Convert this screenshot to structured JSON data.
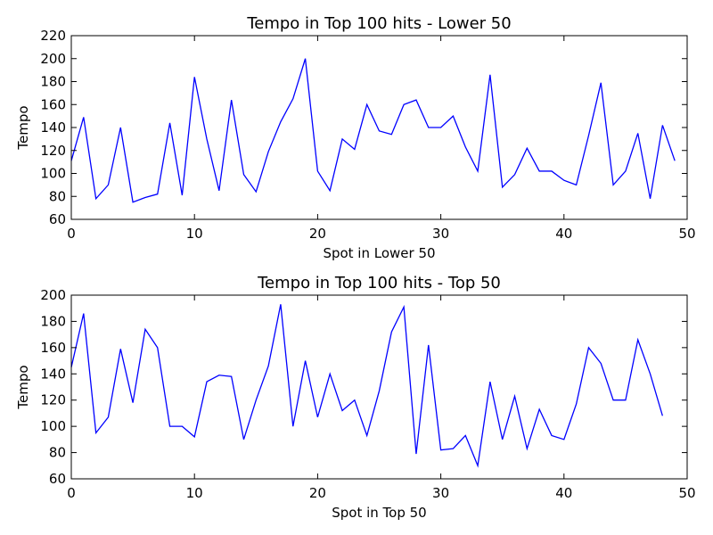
{
  "chart_data": [
    {
      "type": "line",
      "title": "Tempo in Top 100 hits - Lower 50",
      "xlabel": "Spot in Lower 50",
      "ylabel": "Tempo",
      "xlim": [
        0,
        50
      ],
      "ylim": [
        60,
        220
      ],
      "xticks": [
        0,
        10,
        20,
        30,
        40,
        50
      ],
      "yticks": [
        60,
        80,
        100,
        120,
        140,
        160,
        180,
        200,
        220
      ],
      "grid": false,
      "series": [
        {
          "color": "#0000ff",
          "x": [
            0,
            1,
            2,
            3,
            4,
            5,
            6,
            7,
            8,
            9,
            10,
            11,
            12,
            13,
            14,
            15,
            16,
            17,
            18,
            19,
            20,
            21,
            22,
            23,
            24,
            25,
            26,
            27,
            28,
            29,
            30,
            31,
            32,
            33,
            34,
            35,
            36,
            37,
            38,
            39,
            40,
            41,
            42,
            43,
            44,
            45,
            46,
            47,
            48,
            49
          ],
          "y": [
            111,
            149,
            78,
            90,
            140,
            75,
            79,
            82,
            144,
            81,
            184,
            130,
            85,
            164,
            99,
            84,
            119,
            145,
            165,
            200,
            102,
            85,
            130,
            121,
            160,
            137,
            134,
            160,
            164,
            140,
            140,
            150,
            123,
            102,
            186,
            88,
            99,
            122,
            102,
            102,
            94,
            90,
            133,
            179,
            90,
            102,
            135,
            78,
            142,
            111
          ]
        }
      ]
    },
    {
      "type": "line",
      "title": "Tempo in Top 100 hits - Top 50",
      "xlabel": "Spot in Top 50",
      "ylabel": "Tempo",
      "xlim": [
        0,
        50
      ],
      "ylim": [
        60,
        200
      ],
      "xticks": [
        0,
        10,
        20,
        30,
        40,
        50
      ],
      "yticks": [
        60,
        80,
        100,
        120,
        140,
        160,
        180,
        200
      ],
      "grid": false,
      "series": [
        {
          "color": "#0000ff",
          "x": [
            0,
            1,
            2,
            3,
            4,
            5,
            6,
            7,
            8,
            9,
            10,
            11,
            12,
            13,
            14,
            15,
            16,
            17,
            18,
            19,
            20,
            21,
            22,
            23,
            24,
            25,
            26,
            27,
            28,
            29,
            30,
            31,
            32,
            33,
            34,
            35,
            36,
            37,
            38,
            39,
            40,
            41,
            42,
            43,
            44,
            45,
            46,
            47,
            48
          ],
          "y": [
            145,
            186,
            95,
            107,
            159,
            118,
            174,
            160,
            100,
            100,
            92,
            134,
            139,
            138,
            90,
            120,
            146,
            193,
            100,
            150,
            107,
            140,
            112,
            120,
            93,
            127,
            172,
            191,
            79,
            162,
            82,
            83,
            93,
            70,
            134,
            90,
            123,
            83,
            113,
            93,
            90,
            117,
            160,
            148,
            120,
            120,
            166,
            140,
            108
          ]
        }
      ]
    }
  ]
}
